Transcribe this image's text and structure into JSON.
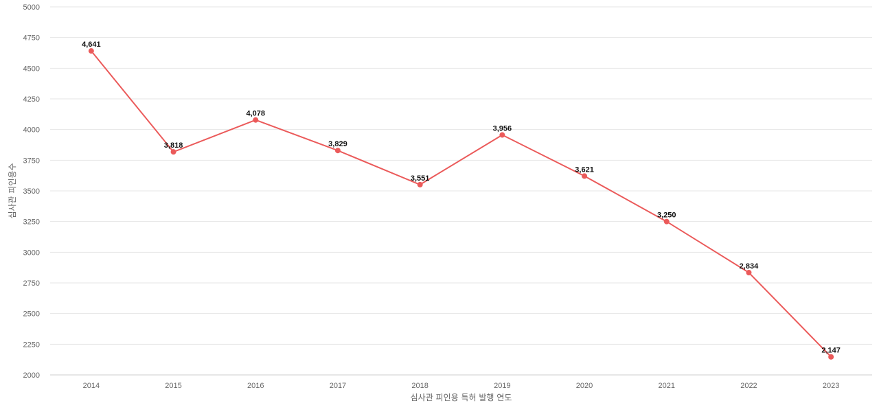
{
  "chart_data": {
    "type": "line",
    "x": [
      "2014",
      "2015",
      "2016",
      "2017",
      "2018",
      "2019",
      "2020",
      "2021",
      "2022",
      "2023"
    ],
    "series": [
      {
        "values": [
          4641,
          3818,
          4078,
          3829,
          3551,
          3956,
          3621,
          3250,
          2834,
          2147
        ],
        "labels": [
          "4,641",
          "3,818",
          "4,078",
          "3,829",
          "3,551",
          "3,956",
          "3,621",
          "3,250",
          "2,834",
          "2,147"
        ],
        "color": "#eb5a5a"
      }
    ],
    "title": "",
    "xlabel": "심사관 피인용 특허 발행 연도",
    "ylabel": "심사관 피인용수",
    "ylim": [
      2000,
      5000
    ],
    "yticks": [
      "2000",
      "2250",
      "2500",
      "2750",
      "3000",
      "3250",
      "3500",
      "3750",
      "4000",
      "4250",
      "4500",
      "4750",
      "5000"
    ],
    "grid": true,
    "legend": "none"
  }
}
